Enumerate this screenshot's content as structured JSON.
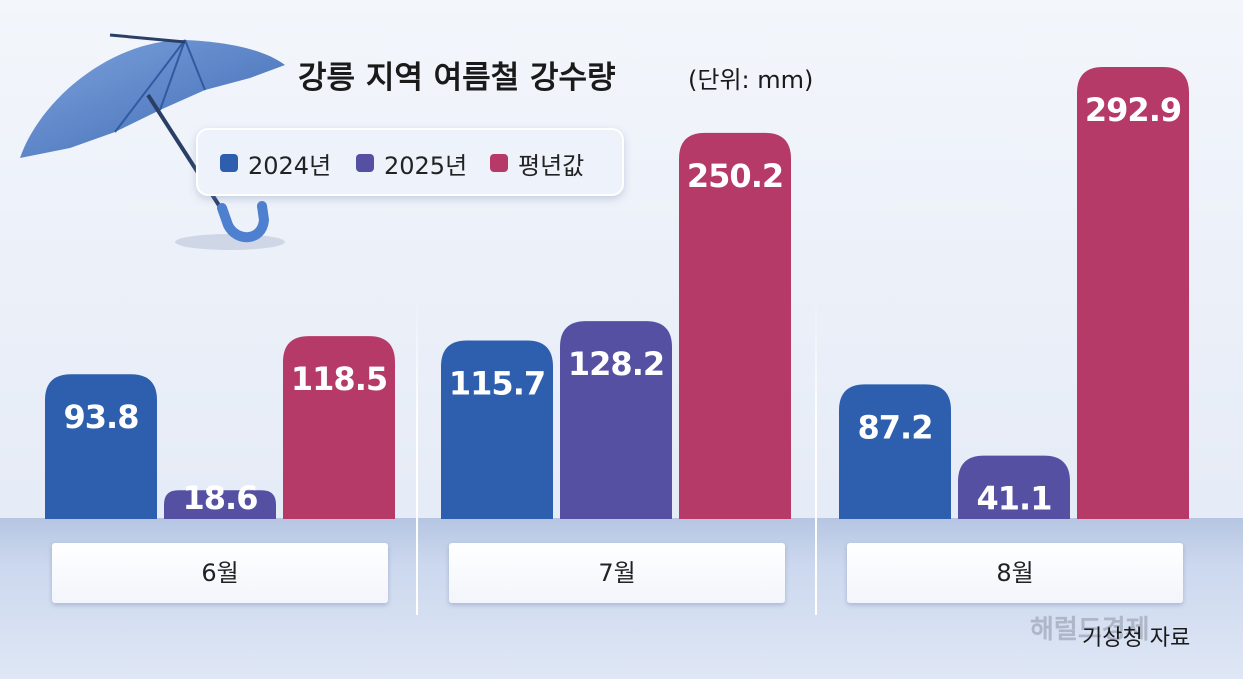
{
  "title": "강릉 지역 여름철 강수량",
  "unit": "(단위: mm)",
  "source": "기상청 자료",
  "watermark": "해럴드경제",
  "colors": {
    "series_2024": "#2d5fae",
    "series_2025": "#5550a2",
    "series_avg": "#b63a68"
  },
  "chart_data": {
    "type": "bar",
    "title": "강릉 지역 여름철 강수량",
    "unit": "(단위: mm)",
    "categories": [
      "6월",
      "7월",
      "8월"
    ],
    "series": [
      {
        "name": "2024년",
        "values": [
          93.8,
          115.7,
          87.2
        ],
        "color": "#2d5fae"
      },
      {
        "name": "2025년",
        "values": [
          18.6,
          128.2,
          41.1
        ],
        "color": "#5550a2"
      },
      {
        "name": "평년값",
        "values": [
          118.5,
          250.2,
          292.9
        ],
        "color": "#b63a68"
      }
    ],
    "value_labels": [
      [
        "93.8",
        "115.7",
        "87.2"
      ],
      [
        "18.6",
        "128.2",
        "41.1"
      ],
      [
        "118.5",
        "250.2",
        "292.9"
      ]
    ],
    "legend_position": "top-left",
    "grid": false,
    "axes_visible": false,
    "source": "기상청 자료"
  }
}
